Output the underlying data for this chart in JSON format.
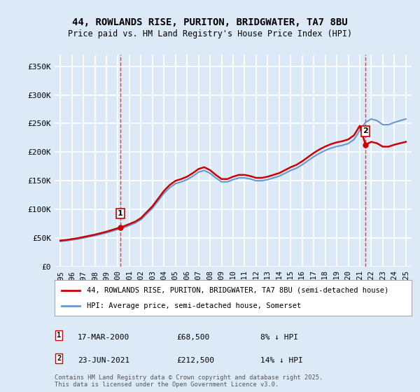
{
  "title1": "44, ROWLANDS RISE, PURITON, BRIDGWATER, TA7 8BU",
  "title2": "Price paid vs. HM Land Registry's House Price Index (HPI)",
  "bg_color": "#dce9f7",
  "plot_bg_color": "#dce9f7",
  "grid_color": "#ffffff",
  "legend_line1": "44, ROWLANDS RISE, PURITON, BRIDGWATER, TA7 8BU (semi-detached house)",
  "legend_line2": "HPI: Average price, semi-detached house, Somerset",
  "footnote": "Contains HM Land Registry data © Crown copyright and database right 2025.\nThis data is licensed under the Open Government Licence v3.0.",
  "annotation1": {
    "label": "1",
    "date_x": 2000.21,
    "y": 68500,
    "date_str": "17-MAR-2000",
    "price": "£68,500",
    "note": "8% ↓ HPI"
  },
  "annotation2": {
    "label": "2",
    "date_x": 2021.48,
    "y": 212500,
    "date_str": "23-JUN-2021",
    "price": "£212,500",
    "note": "14% ↓ HPI"
  },
  "red_line_color": "#cc0000",
  "blue_line_color": "#6699cc",
  "hpi_years": [
    1995,
    1995.5,
    1996,
    1996.5,
    1997,
    1997.5,
    1998,
    1998.5,
    1999,
    1999.5,
    2000,
    2000.5,
    2001,
    2001.5,
    2002,
    2002.5,
    2003,
    2003.5,
    2004,
    2004.5,
    2005,
    2005.5,
    2006,
    2006.5,
    2007,
    2007.5,
    2008,
    2008.5,
    2009,
    2009.5,
    2010,
    2010.5,
    2011,
    2011.5,
    2012,
    2012.5,
    2013,
    2013.5,
    2014,
    2014.5,
    2015,
    2015.5,
    2016,
    2016.5,
    2017,
    2017.5,
    2018,
    2018.5,
    2019,
    2019.5,
    2020,
    2020.5,
    2021,
    2021.5,
    2022,
    2022.5,
    2023,
    2023.5,
    2024,
    2024.5,
    2025
  ],
  "hpi_values": [
    44000,
    45000,
    46500,
    48000,
    50000,
    52000,
    54000,
    56500,
    59000,
    62000,
    65000,
    68000,
    72000,
    76000,
    82000,
    92000,
    102000,
    115000,
    128000,
    138000,
    145000,
    148000,
    152000,
    158000,
    165000,
    168000,
    163000,
    155000,
    148000,
    148000,
    152000,
    155000,
    155000,
    153000,
    150000,
    150000,
    152000,
    155000,
    158000,
    163000,
    168000,
    172000,
    178000,
    185000,
    192000,
    198000,
    203000,
    207000,
    210000,
    212000,
    215000,
    222000,
    238000,
    252000,
    258000,
    255000,
    248000,
    248000,
    252000,
    255000,
    258000
  ],
  "price_years": [
    2000.21,
    2021.48
  ],
  "price_values": [
    68500,
    212500
  ],
  "ylim": [
    0,
    370000
  ],
  "xlim": [
    1994.5,
    2025.5
  ],
  "yticks": [
    0,
    50000,
    100000,
    150000,
    200000,
    250000,
    300000,
    350000
  ],
  "ytick_labels": [
    "£0",
    "£50K",
    "£100K",
    "£150K",
    "£200K",
    "£250K",
    "£300K",
    "£350K"
  ],
  "xtick_years": [
    1995,
    1996,
    1997,
    1998,
    1999,
    2000,
    2001,
    2002,
    2003,
    2004,
    2005,
    2006,
    2007,
    2008,
    2009,
    2010,
    2011,
    2012,
    2013,
    2014,
    2015,
    2016,
    2017,
    2018,
    2019,
    2020,
    2021,
    2022,
    2023,
    2024,
    2025
  ]
}
